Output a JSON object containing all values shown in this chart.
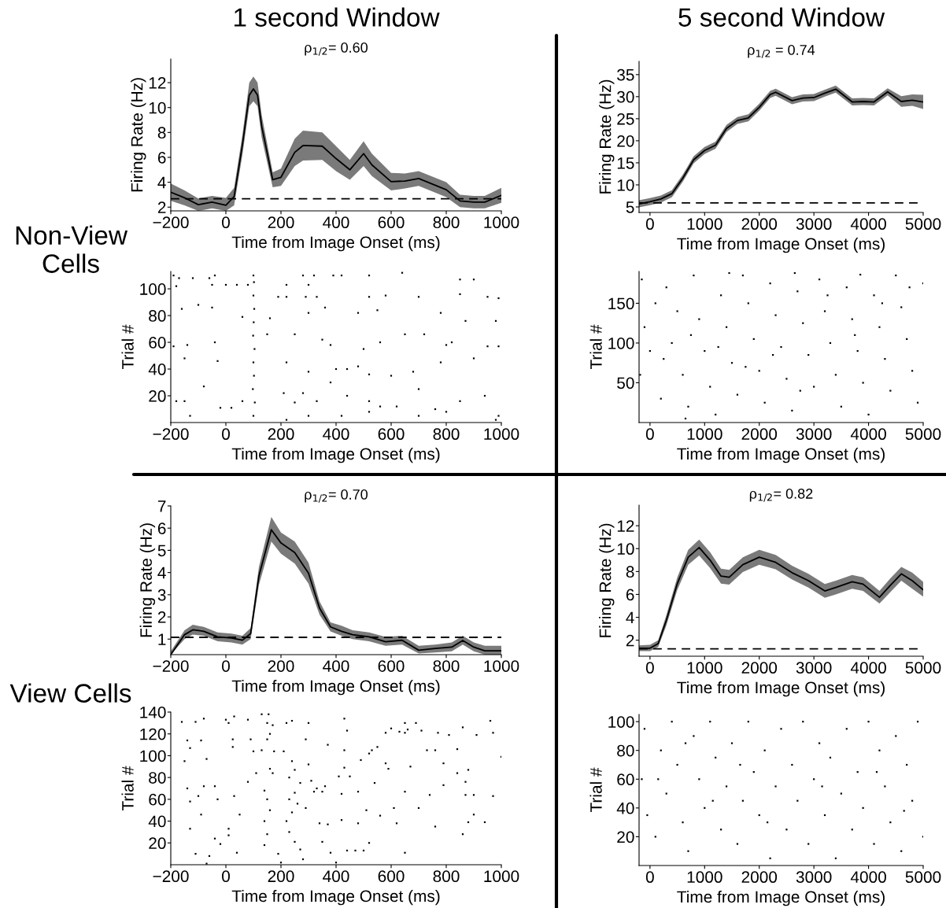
{
  "chart_data": [
    {
      "type": "line",
      "title": "ρ$_{1/2}$= 0.60",
      "xlabel": "Time from Image Onset (ms)",
      "ylabel": "Firing Rate (Hz)",
      "annotations": [
        "1 second Window",
        "Non-View\nCells"
      ],
      "xlim": [
        -200,
        1000
      ],
      "xticks": [
        -200,
        0,
        200,
        400,
        600,
        800,
        1000
      ],
      "ylim": [
        1.7,
        13.9
      ],
      "yticks": [
        2,
        4,
        6,
        8,
        10,
        12
      ],
      "ref_lines": [
        {
          "axis": "y",
          "value": 2.67,
          "line_style": "dashed",
          "color": "#000000"
        }
      ],
      "series": [
        {
          "color": "#000000",
          "x": [
            -200,
            -150,
            -100,
            -50,
            0,
            30,
            60,
            85,
            100,
            115,
            130,
            170,
            200,
            250,
            280,
            350,
            400,
            450,
            500,
            530,
            600,
            650,
            700,
            800,
            850,
            900,
            940,
            1000
          ],
          "values": [
            3.2,
            2.75,
            2.2,
            2.4,
            2.15,
            2.85,
            7.0,
            11.0,
            11.5,
            11.0,
            8.5,
            4.2,
            4.4,
            6.4,
            6.95,
            6.9,
            5.9,
            5.0,
            6.3,
            5.4,
            4.05,
            4.1,
            4.3,
            3.4,
            2.5,
            2.4,
            2.4,
            2.95
          ],
          "lower": [
            2.5,
            2.15,
            1.7,
            1.9,
            1.7,
            2.15,
            6.2,
            10.1,
            10.5,
            10.1,
            7.6,
            3.6,
            3.7,
            5.3,
            5.75,
            5.8,
            4.9,
            4.2,
            5.3,
            4.5,
            3.35,
            3.5,
            3.7,
            2.8,
            2.0,
            1.9,
            1.9,
            2.35
          ],
          "upper": [
            3.9,
            3.35,
            2.7,
            2.9,
            2.75,
            3.55,
            7.8,
            12.0,
            12.5,
            12.0,
            9.4,
            4.8,
            5.1,
            7.5,
            8.15,
            8.0,
            6.9,
            5.8,
            7.3,
            6.3,
            4.75,
            4.7,
            4.9,
            4.0,
            3.0,
            2.9,
            2.9,
            3.55
          ]
        }
      ]
    },
    {
      "type": "line",
      "title": "ρ$_{1/2}$ = 0.74",
      "xlabel": "Time from Image Onset (ms)",
      "ylabel": "Firing Rate (Hz)",
      "annotations": [
        "5 second Window"
      ],
      "xlim": [
        -200,
        5000
      ],
      "xticks": [
        0,
        1000,
        2000,
        3000,
        4000,
        5000
      ],
      "ylim": [
        3.75,
        38
      ],
      "yticks": [
        5,
        10,
        15,
        20,
        25,
        30,
        35
      ],
      "ref_lines": [
        {
          "axis": "y",
          "value": 5.9,
          "line_style": "dashed",
          "color": "#000000"
        }
      ],
      "series": [
        {
          "color": "#000000",
          "x": [
            -200,
            0,
            200,
            400,
            600,
            800,
            1000,
            1200,
            1400,
            1600,
            1800,
            2000,
            2200,
            2300,
            2600,
            2800,
            3000,
            3200,
            3400,
            3700,
            3900,
            4100,
            4350,
            4600,
            4800,
            5000
          ],
          "values": [
            5.7,
            6.2,
            6.8,
            8.0,
            11.5,
            15.7,
            17.8,
            19.0,
            22.8,
            24.6,
            25.2,
            27.6,
            30.5,
            31.0,
            29.1,
            29.7,
            29.8,
            30.8,
            31.7,
            28.8,
            28.9,
            28.8,
            31.1,
            28.9,
            29.2,
            28.8
          ],
          "lower": [
            4.9,
            5.4,
            6.0,
            7.2,
            10.7,
            14.9,
            17.0,
            18.2,
            22.0,
            23.8,
            24.4,
            26.8,
            29.7,
            30.2,
            28.3,
            28.9,
            29.0,
            30.0,
            30.9,
            28.0,
            28.1,
            28.0,
            30.3,
            27.7,
            27.9,
            27.2
          ],
          "upper": [
            6.5,
            7.0,
            7.6,
            8.8,
            12.3,
            16.5,
            18.6,
            19.8,
            23.6,
            25.4,
            26.0,
            28.4,
            31.3,
            31.8,
            29.9,
            30.5,
            30.6,
            31.6,
            32.5,
            29.6,
            29.7,
            29.6,
            31.9,
            30.1,
            30.5,
            30.4
          ]
        }
      ]
    },
    {
      "type": "scatter",
      "xlabel": "Time from Image Onset (ms)",
      "ylabel": "Trial #",
      "marker": "square",
      "xlim": [
        -200,
        1000
      ],
      "xticks": [
        -200,
        0,
        200,
        400,
        600,
        800,
        1000
      ],
      "ylim": [
        0,
        113
      ],
      "yticks": [
        20,
        40,
        60,
        80,
        100
      ],
      "series": [
        {
          "color": "#000000",
          "x": [
            100,
            105,
            98,
            102,
            100,
            104,
            99,
            101,
            103,
            100,
            102,
            100,
            -190,
            -170,
            -120,
            -60,
            -40,
            280,
            320,
            390,
            420,
            520,
            640,
            -180,
            -50,
            0,
            40,
            80,
            220,
            300,
            850,
            900,
            190,
            220,
            290,
            330,
            520,
            580,
            700,
            850,
            950,
            990,
            -100,
            -50,
            -160,
            60,
            160,
            300,
            360,
            480,
            550,
            780,
            870,
            980,
            -190,
            -140,
            -40,
            150,
            250,
            350,
            380,
            500,
            560,
            650,
            720,
            800,
            820,
            950,
            990,
            -150,
            -30,
            220,
            300,
            400,
            440,
            480,
            520,
            600,
            680,
            780,
            900,
            -180,
            -150,
            -80,
            -20,
            20,
            60,
            210,
            250,
            280,
            330,
            380,
            440,
            520,
            560,
            620,
            700,
            760,
            800,
            850,
            940,
            990,
            -130,
            220,
            300,
            420,
            520,
            700,
            980
          ],
          "values": [
            5,
            15,
            25,
            35,
            45,
            55,
            65,
            75,
            85,
            95,
            105,
            110,
            110,
            108,
            108,
            108,
            110,
            110,
            110,
            110,
            110,
            110,
            112,
            102,
            103,
            103,
            103,
            103,
            103,
            103,
            107,
            107,
            94,
            94,
            94,
            94,
            94,
            95,
            94,
            96,
            94,
            93,
            88,
            86,
            85,
            79,
            78,
            82,
            86,
            82,
            84,
            82,
            76,
            76,
            57,
            58,
            60,
            66,
            66,
            62,
            58,
            55,
            60,
            66,
            66,
            58,
            60,
            57,
            57,
            48,
            46,
            45,
            38,
            40,
            40,
            42,
            36,
            35,
            38,
            45,
            48,
            16,
            16,
            27,
            11,
            11,
            16,
            22,
            15,
            22,
            16,
            30,
            20,
            16,
            12,
            12,
            25,
            10,
            8,
            16,
            20,
            5,
            5,
            2,
            5,
            5,
            8,
            5,
            2
          ]
        }
      ]
    },
    {
      "type": "scatter",
      "xlabel": "Time from Image Onset (ms)",
      "ylabel": "Trial #",
      "marker": "square",
      "xlim": [
        -200,
        5000
      ],
      "xticks": [
        0,
        1000,
        2000,
        3000,
        4000,
        5000
      ],
      "ylim": [
        0,
        190
      ],
      "yticks": [
        50,
        100,
        150
      ],
      "series": [
        {
          "color": "#000000",
          "x": [
            -150,
            100,
            -100,
            0,
            -180,
            200,
            300,
            500,
            400,
            600,
            700,
            800,
            900,
            1000,
            1100,
            1200,
            1300,
            1400,
            1500,
            1600,
            1700,
            1800,
            1900,
            2000,
            2100,
            2200,
            2300,
            2400,
            2500,
            2600,
            2700,
            2800,
            2900,
            3000,
            3100,
            3200,
            3300,
            3400,
            3500,
            3600,
            3700,
            3800,
            3900,
            4000,
            4100,
            4200,
            4300,
            4400,
            4500,
            4600,
            4700,
            4800,
            4900,
            5000,
            250,
            750,
            1250,
            1750,
            2250,
            2750,
            3250,
            3750,
            4250,
            4750,
            650,
            1450,
            2650,
            3850
          ],
          "values": [
            180,
            150,
            120,
            90,
            60,
            30,
            170,
            140,
            100,
            60,
            20,
            185,
            130,
            90,
            45,
            10,
            160,
            120,
            75,
            35,
            185,
            150,
            105,
            65,
            25,
            175,
            135,
            95,
            55,
            15,
            165,
            125,
            85,
            45,
            180,
            140,
            100,
            60,
            20,
            170,
            130,
            90,
            50,
            10,
            160,
            120,
            80,
            40,
            185,
            145,
            105,
            65,
            25,
            175,
            80,
            110,
            95,
            70,
            85,
            40,
            160,
            110,
            150,
            170,
            5,
            188,
            188,
            186
          ]
        }
      ]
    },
    {
      "type": "line",
      "title": "ρ$_{1/2}$= 0.70",
      "xlabel": "Time from Image Onset (ms)",
      "ylabel": "Firing Rate (Hz)",
      "annotations": [
        "View Cells"
      ],
      "xlim": [
        -200,
        1000
      ],
      "xticks": [
        -200,
        0,
        200,
        400,
        600,
        800,
        1000
      ],
      "ylim": [
        0.3,
        7
      ],
      "yticks": [
        1,
        2,
        3,
        4,
        5,
        6,
        7
      ],
      "ref_lines": [
        {
          "axis": "y",
          "value": 1.08,
          "line_style": "dashed",
          "color": "#000000"
        }
      ],
      "series": [
        {
          "color": "#000000",
          "x": [
            -200,
            -150,
            -120,
            -80,
            -30,
            20,
            60,
            90,
            120,
            165,
            200,
            250,
            300,
            340,
            380,
            420,
            460,
            520,
            580,
            640,
            700,
            760,
            820,
            860,
            900,
            940,
            1000
          ],
          "values": [
            0.3,
            1.2,
            1.42,
            1.35,
            1.1,
            1.05,
            0.95,
            1.25,
            3.85,
            5.93,
            5.33,
            4.9,
            3.97,
            2.4,
            1.55,
            1.35,
            1.2,
            1.1,
            0.88,
            0.95,
            0.5,
            0.58,
            0.64,
            0.94,
            0.64,
            0.47,
            0.47
          ],
          "lower": [
            0.3,
            1.0,
            1.2,
            1.15,
            0.9,
            0.85,
            0.75,
            1.0,
            3.45,
            5.4,
            4.85,
            4.4,
            3.5,
            2.1,
            1.35,
            1.15,
            1.0,
            0.9,
            0.7,
            0.75,
            0.35,
            0.4,
            0.45,
            0.75,
            0.45,
            0.3,
            0.3
          ],
          "upper": [
            0.45,
            1.4,
            1.65,
            1.55,
            1.3,
            1.25,
            1.15,
            1.5,
            4.25,
            6.5,
            5.8,
            5.4,
            4.45,
            2.7,
            1.75,
            1.6,
            1.4,
            1.3,
            1.1,
            1.15,
            0.7,
            0.75,
            0.85,
            1.15,
            0.85,
            0.7,
            0.7
          ]
        }
      ]
    },
    {
      "type": "line",
      "title": "ρ$_{1/2}$= 0.82",
      "xlabel": "Time from Image Onset (ms)",
      "ylabel": "Firing Rate (Hz)",
      "xlim": [
        -200,
        5000
      ],
      "xticks": [
        0,
        1000,
        2000,
        3000,
        4000,
        5000
      ],
      "ylim": [
        0.6,
        13.8
      ],
      "yticks": [
        2,
        4,
        6,
        8,
        10,
        12
      ],
      "ref_lines": [
        {
          "axis": "y",
          "value": 1.25,
          "line_style": "dashed",
          "color": "#000000"
        }
      ],
      "series": [
        {
          "color": "#000000",
          "x": [
            -200,
            0,
            150,
            300,
            500,
            700,
            900,
            1100,
            1300,
            1450,
            1700,
            2000,
            2300,
            2600,
            2900,
            3200,
            3400,
            3700,
            3900,
            4200,
            4400,
            4600,
            4800,
            5000
          ],
          "values": [
            1.3,
            1.3,
            1.7,
            3.75,
            6.95,
            9.25,
            10.1,
            9.0,
            7.6,
            7.5,
            8.6,
            9.25,
            8.8,
            7.9,
            7.2,
            6.3,
            6.6,
            7.1,
            6.9,
            5.75,
            6.8,
            7.8,
            7.2,
            6.4
          ],
          "lower": [
            1.05,
            1.05,
            1.4,
            3.3,
            6.4,
            8.6,
            9.4,
            8.3,
            6.95,
            6.85,
            7.95,
            8.6,
            8.2,
            7.3,
            6.6,
            5.7,
            6.0,
            6.5,
            6.3,
            5.2,
            6.2,
            7.2,
            6.5,
            5.8
          ],
          "upper": [
            1.55,
            1.6,
            2.0,
            4.2,
            7.5,
            9.9,
            10.8,
            9.7,
            8.25,
            8.15,
            9.25,
            9.9,
            9.45,
            8.5,
            7.8,
            6.9,
            7.2,
            7.7,
            7.5,
            6.3,
            7.4,
            8.4,
            7.9,
            7.1
          ]
        }
      ]
    },
    {
      "type": "scatter",
      "xlabel": "Time from Image Onset (ms)",
      "ylabel": "Trial #",
      "marker": "square",
      "xlim": [
        -200,
        1000
      ],
      "xticks": [
        -200,
        0,
        200,
        400,
        600,
        800,
        1000
      ],
      "ylim": [
        0,
        140
      ],
      "yticks": [
        20,
        40,
        60,
        80,
        100,
        120,
        140
      ],
      "series": [
        {
          "color": "#000000",
          "x": [
            -160,
            -140,
            -130,
            -110,
            -90,
            -80,
            -150,
            -140,
            -130,
            -80,
            -70,
            -100,
            -40,
            -30,
            -90,
            -130,
            -40,
            -20,
            -110,
            -60,
            -70,
            0,
            10,
            30,
            25,
            25,
            80,
            100,
            90,
            110,
            130,
            80,
            50,
            30,
            10,
            10,
            40,
            130,
            155,
            150,
            170,
            160,
            150,
            175,
            160,
            170,
            140,
            150,
            160,
            140,
            150,
            140,
            190,
            200,
            210,
            220,
            240,
            240,
            250,
            230,
            270,
            250,
            230,
            260,
            240,
            220,
            230,
            250,
            270,
            280,
            290,
            300,
            300,
            310,
            320,
            290,
            330,
            350,
            360,
            340,
            350,
            370,
            380,
            400,
            370,
            410,
            420,
            430,
            440,
            430,
            430,
            450,
            420,
            440,
            470,
            480,
            480,
            490,
            500,
            510,
            520,
            520,
            530,
            550,
            560,
            540,
            580,
            590,
            600,
            580,
            610,
            630,
            620,
            650,
            650,
            660,
            650,
            670,
            690,
            700,
            710,
            740,
            730,
            760,
            770,
            760,
            790,
            790,
            810,
            840,
            840,
            860,
            870,
            870,
            880,
            880,
            860,
            900,
            900,
            910,
            940,
            960,
            970,
            970,
            1000,
            650
          ],
          "values": [
            131,
            114,
            107,
            131,
            114,
            134,
            95,
            70,
            58,
            72,
            97,
            63,
            72,
            60,
            46,
            33,
            24,
            19,
            10,
            8,
            1,
            133,
            130,
            136,
            115,
            108,
            133,
            104,
            115,
            84,
            105,
            76,
            46,
            63,
            33,
            27,
            11,
            138,
            138,
            130,
            128,
            120,
            115,
            104,
            88,
            84,
            68,
            60,
            50,
            40,
            28,
            18,
            10,
            2,
            104,
            130,
            132,
            95,
            87,
            80,
            75,
            66,
            60,
            56,
            48,
            40,
            30,
            21,
            14,
            5,
            115,
            92,
            130,
            77,
            67,
            52,
            70,
            67,
            72,
            38,
            21,
            37,
            11,
            2,
            110,
            81,
            65,
            134,
            123,
            105,
            89,
            81,
            41,
            13,
            13,
            67,
            38,
            96,
            13,
            50,
            102,
            20,
            105,
            108,
            45,
            75,
            93,
            88,
            125,
            121,
            52,
            122,
            38,
            130,
            121,
            124,
            67,
            90,
            130,
            52,
            123,
            64,
            105,
            105,
            121,
            35,
            93,
            73,
            119,
            106,
            84,
            126,
            76,
            64,
            87,
            39,
            28,
            64,
            46,
            119,
            39,
            132,
            121,
            63,
            99,
            11
          ]
        }
      ]
    },
    {
      "type": "scatter",
      "xlabel": "Time from Image Onset (ms)",
      "ylabel": "Trial #",
      "marker": "square",
      "xlim": [
        -200,
        5000
      ],
      "xticks": [
        0,
        1000,
        2000,
        3000,
        4000,
        5000
      ],
      "ylim": [
        0,
        105
      ],
      "yticks": [
        20,
        40,
        60,
        80,
        100
      ],
      "series": [
        {
          "color": "#000000",
          "x": [
            -100,
            -150,
            -50,
            100,
            200,
            300,
            400,
            500,
            600,
            700,
            800,
            900,
            1000,
            1100,
            1200,
            1300,
            1400,
            1500,
            1600,
            1700,
            1800,
            1900,
            2000,
            2100,
            2200,
            2300,
            2400,
            2500,
            2600,
            2700,
            2800,
            2900,
            3000,
            3100,
            3200,
            3300,
            3400,
            3500,
            3600,
            3700,
            3800,
            3900,
            4000,
            4100,
            4200,
            4300,
            4400,
            4500,
            4600,
            4700,
            4800,
            4900,
            5000,
            150,
            650,
            1150,
            1650,
            2150,
            3150,
            4150,
            4650
          ],
          "values": [
            95,
            60,
            35,
            20,
            80,
            50,
            100,
            70,
            30,
            10,
            90,
            60,
            40,
            100,
            75,
            25,
            55,
            85,
            15,
            45,
            100,
            65,
            35,
            80,
            5,
            55,
            95,
            25,
            70,
            45,
            100,
            15,
            60,
            85,
            35,
            75,
            5,
            50,
            95,
            25,
            65,
            40,
            100,
            15,
            80,
            55,
            30,
            90,
            10,
            70,
            45,
            100,
            20,
            60,
            85,
            45,
            70,
            30,
            55,
            65,
            38
          ]
        }
      ]
    }
  ]
}
